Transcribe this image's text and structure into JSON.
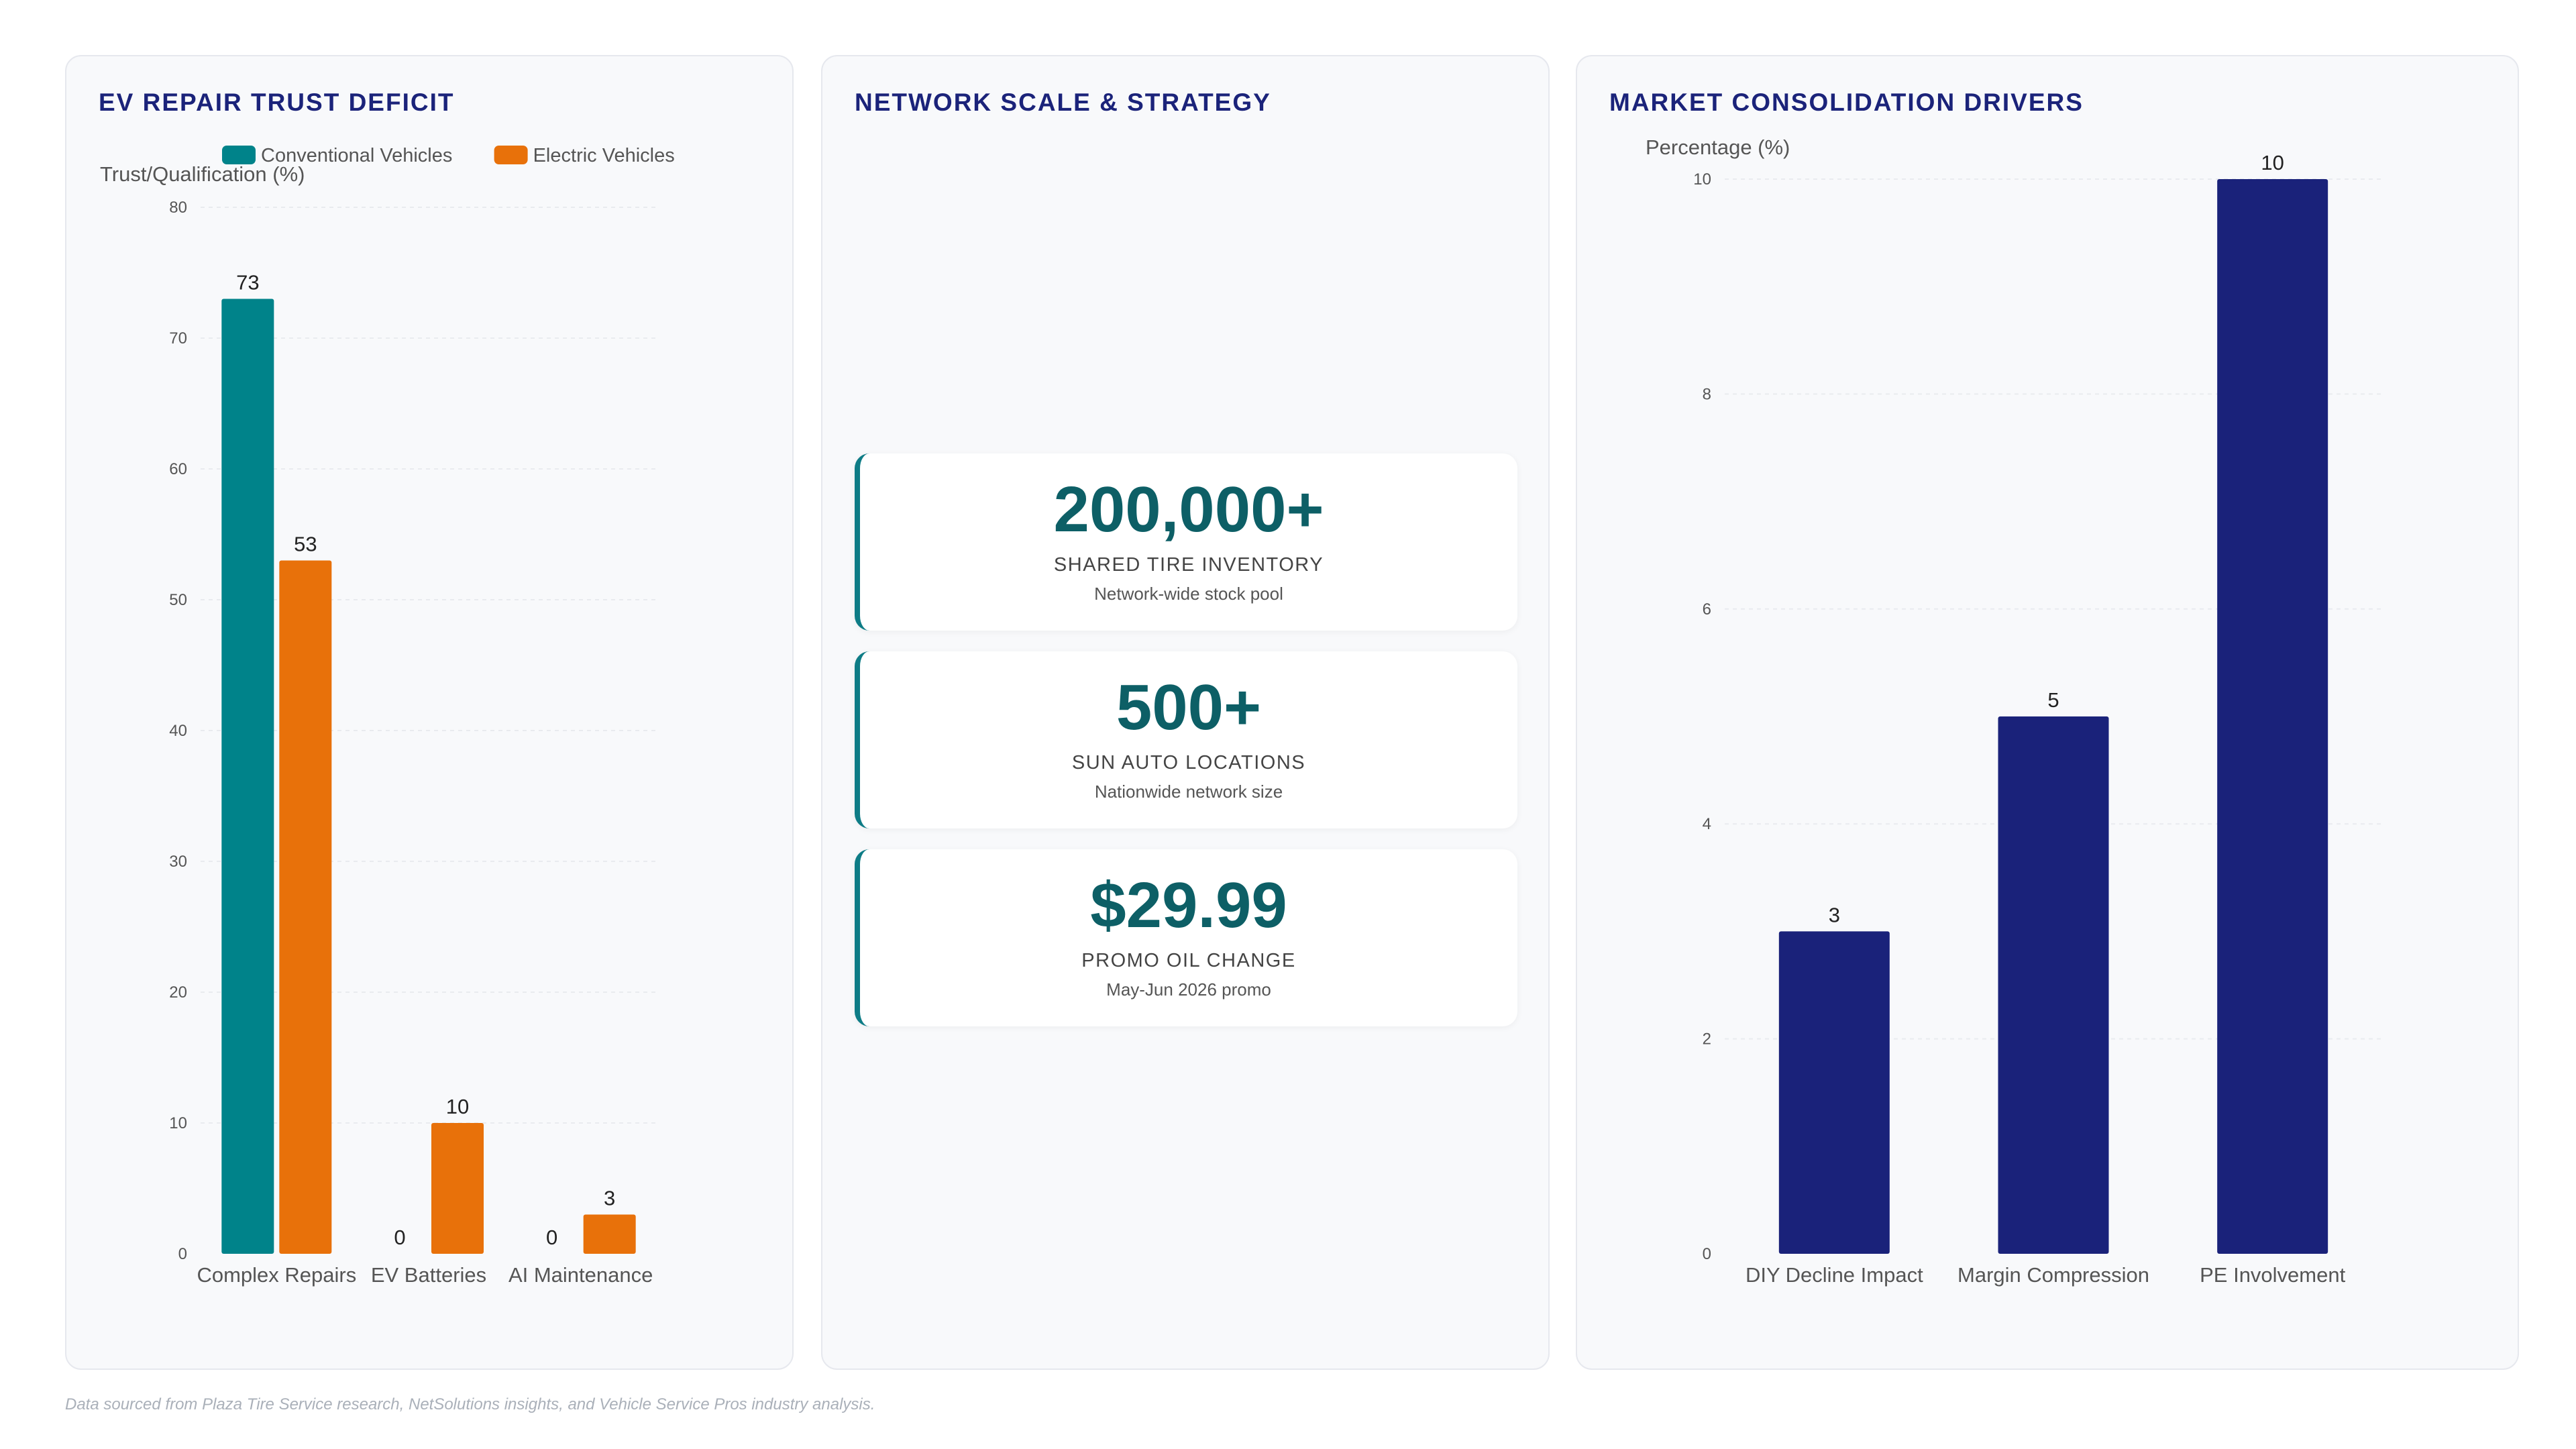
{
  "panels": {
    "trust": {
      "title": "EV REPAIR TRUST DEFICIT"
    },
    "network": {
      "title": "NETWORK SCALE & STRATEGY"
    },
    "market": {
      "title": "MARKET CONSOLIDATION DRIVERS"
    }
  },
  "stats": [
    {
      "value": "200,000+",
      "label": "SHARED TIRE INVENTORY",
      "sub": "Network-wide stock pool"
    },
    {
      "value": "500+",
      "label": "SUN AUTO LOCATIONS",
      "sub": "Nationwide network size"
    },
    {
      "value": "$29.99",
      "label": "PROMO OIL CHANGE",
      "sub": "May-Jun 2026 promo"
    }
  ],
  "footer": "Data sourced from Plaza Tire Service research, NetSolutions insights, and Vehicle Service Pros industry analysis.",
  "chart_data": [
    {
      "type": "bar",
      "title": "EV REPAIR TRUST DEFICIT",
      "ylabel": "Trust/Qualification (%)",
      "xlabel": "",
      "categories": [
        "Complex Repairs",
        "EV Batteries",
        "AI Maintenance"
      ],
      "series": [
        {
          "name": "Conventional Vehicles",
          "color": "#00838a",
          "values": [
            73,
            0,
            0
          ]
        },
        {
          "name": "Electric Vehicles",
          "color": "#e8710a",
          "values": [
            53,
            10,
            3
          ]
        }
      ],
      "ylim": [
        0,
        80
      ],
      "yticks": [
        0,
        10,
        20,
        30,
        40,
        50,
        60,
        70,
        80
      ],
      "grid": true,
      "legend": "top"
    },
    {
      "type": "bar",
      "title": "MARKET CONSOLIDATION DRIVERS",
      "ylabel": "Percentage (%)",
      "xlabel": "",
      "categories": [
        "DIY Decline Impact",
        "Margin Compression",
        "PE Involvement"
      ],
      "series": [
        {
          "name": "",
          "color": "#1a227a",
          "values": [
            3,
            5,
            10
          ]
        }
      ],
      "ylim": [
        0,
        10
      ],
      "yticks": [
        0,
        2,
        4,
        6,
        8,
        10
      ],
      "grid": true,
      "legend": "none"
    }
  ]
}
